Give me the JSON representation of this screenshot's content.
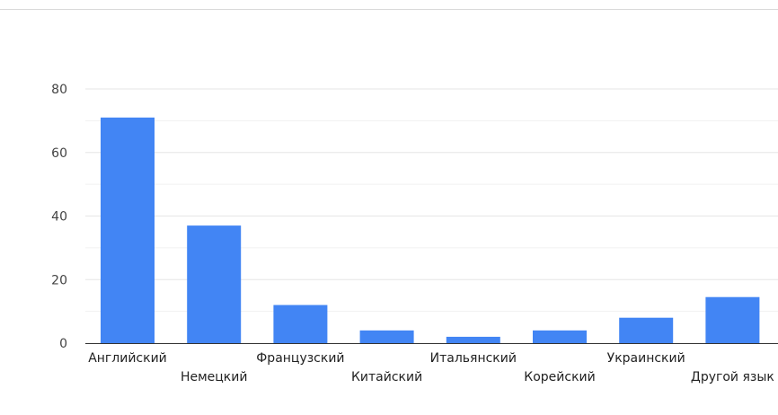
{
  "chart_data": {
    "type": "bar",
    "categories": [
      "Английский",
      "Немецкий",
      "Французский",
      "Китайский",
      "Итальянский",
      "Корейский",
      "Украинский",
      "Другой язык"
    ],
    "values": [
      71,
      37,
      12,
      4,
      2,
      4,
      8,
      14.5
    ],
    "yticks": [
      "0",
      "20",
      "40",
      "60",
      "80"
    ],
    "ylim": [
      0,
      80
    ],
    "grid": true,
    "legend": "none",
    "bar_color": "#4285f4",
    "grid_color": "#e6e6e6",
    "axis_color": "#333333"
  }
}
